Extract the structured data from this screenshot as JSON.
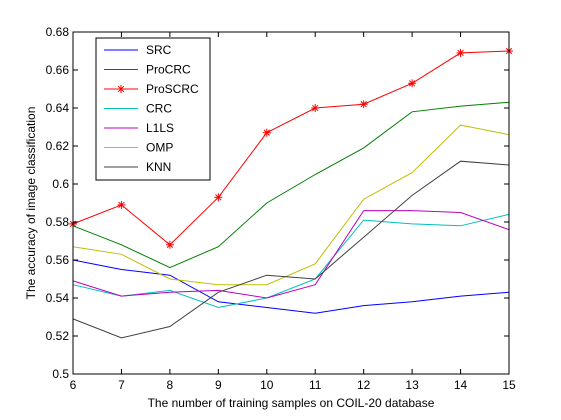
{
  "chart_data": {
    "type": "line",
    "title": "",
    "xlabel": "The number of training samples on COIL-20 database",
    "ylabel": "The accuracy of image classification",
    "xlim": [
      6,
      15
    ],
    "ylim": [
      0.5,
      0.68
    ],
    "x": [
      6,
      7,
      8,
      9,
      10,
      11,
      12,
      13,
      14,
      15
    ],
    "xticks": [
      "6",
      "7",
      "8",
      "9",
      "10",
      "11",
      "12",
      "13",
      "14",
      "15"
    ],
    "yticks": [
      "0.5",
      "0.52",
      "0.54",
      "0.56",
      "0.58",
      "0.6",
      "0.62",
      "0.64",
      "0.66",
      "0.68"
    ],
    "grid": false,
    "legend_position": "top-left",
    "series": [
      {
        "name": "SRC",
        "color": "#0000ff",
        "marker": "none",
        "values": [
          0.56,
          0.555,
          0.552,
          0.538,
          0.535,
          0.532,
          0.536,
          0.538,
          0.541,
          0.543
        ]
      },
      {
        "name": "ProCRC",
        "color": "#007f00",
        "marker": "none",
        "values": [
          0.578,
          0.568,
          0.556,
          0.567,
          0.59,
          0.605,
          0.619,
          0.638,
          0.641,
          0.643
        ]
      },
      {
        "name": "ProSCRC",
        "color": "#ff0000",
        "marker": "asterisk",
        "values": [
          0.579,
          0.589,
          0.568,
          0.593,
          0.627,
          0.64,
          0.642,
          0.653,
          0.669,
          0.67
        ]
      },
      {
        "name": "CRC",
        "color": "#00bfbf",
        "marker": "none",
        "values": [
          0.547,
          0.541,
          0.544,
          0.535,
          0.54,
          0.55,
          0.581,
          0.579,
          0.578,
          0.584
        ]
      },
      {
        "name": "L1LS",
        "color": "#bf00bf",
        "marker": "none",
        "values": [
          0.549,
          0.541,
          0.543,
          0.544,
          0.54,
          0.547,
          0.586,
          0.586,
          0.585,
          0.576
        ]
      },
      {
        "name": "OMP",
        "color": "#bfbf00",
        "marker": "none",
        "values": [
          0.567,
          0.563,
          0.55,
          0.547,
          0.547,
          0.558,
          0.592,
          0.606,
          0.631,
          0.626
        ]
      },
      {
        "name": "KNN",
        "color": "#404040",
        "marker": "none",
        "values": [
          0.529,
          0.519,
          0.525,
          0.543,
          0.552,
          0.55,
          0.572,
          0.594,
          0.612,
          0.61
        ]
      }
    ]
  }
}
